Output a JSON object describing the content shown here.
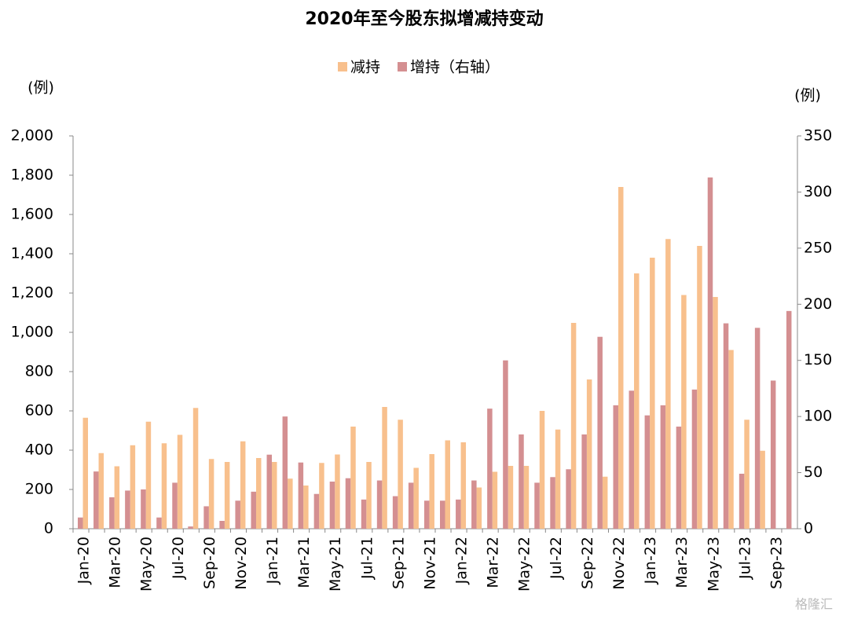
{
  "chart_data": {
    "type": "bar",
    "title": "2020年至今股东拟增减持变动",
    "y_label": "(例)",
    "y2_label": "(例)",
    "categories": [
      "Jan-20",
      null,
      "Mar-20",
      null,
      "May-20",
      null,
      "Jul-20",
      null,
      "Sep-20",
      null,
      "Nov-20",
      null,
      "Jan-21",
      null,
      "Mar-21",
      null,
      "May-21",
      null,
      "Jul-21",
      null,
      "Sep-21",
      null,
      "Nov-21",
      null,
      "Jan-22",
      null,
      "Mar-22",
      null,
      "May-22",
      null,
      "Jul-22",
      null,
      "Sep-22",
      null,
      "Nov-22",
      null,
      "Jan-23",
      null,
      "Mar-23",
      null,
      "May-23",
      null,
      "Jul-23",
      null,
      "Sep-23",
      null
    ],
    "series": [
      {
        "name": "减持",
        "color": "#f8c08d",
        "values": [
          565,
          385,
          318,
          425,
          545,
          435,
          478,
          615,
          355,
          340,
          445,
          360,
          340,
          255,
          220,
          335,
          378,
          520,
          340,
          620,
          555,
          310,
          380,
          450,
          440,
          210,
          290,
          320,
          320,
          600,
          505,
          1048,
          760,
          265,
          1740,
          1300,
          1380,
          1475,
          1190,
          1440,
          1180,
          910,
          555,
          397,
          null,
          null
        ]
      },
      {
        "name": "增持（右轴）",
        "color": "#d48f91",
        "axis": "y2",
        "values": [
          10,
          51,
          28,
          34,
          35,
          10,
          41,
          2,
          20,
          7,
          25,
          33,
          66,
          100,
          59,
          31,
          42,
          45,
          26,
          43,
          29,
          41,
          25,
          25,
          26,
          43,
          107,
          150,
          84,
          41,
          46,
          53,
          84,
          171,
          110,
          123,
          101,
          110,
          91,
          124,
          313,
          183,
          49,
          179,
          132,
          194
        ]
      }
    ],
    "ylim": [
      0,
      2000
    ],
    "yticks": [
      0,
      200,
      400,
      600,
      800,
      {
        "value": 1000,
        "label": "1,000"
      },
      {
        "value": 1200,
        "label": "1,200"
      },
      {
        "value": 1400,
        "label": "1,400"
      },
      {
        "value": 1600,
        "label": "1,600"
      },
      {
        "value": 1800,
        "label": "1,800"
      },
      {
        "value": 2000,
        "label": "2,000"
      }
    ],
    "y2lim": [
      0,
      350
    ],
    "y2ticks": [
      0,
      50,
      100,
      150,
      200,
      250,
      300,
      350
    ],
    "legend": "top",
    "watermark": "格隆汇"
  }
}
